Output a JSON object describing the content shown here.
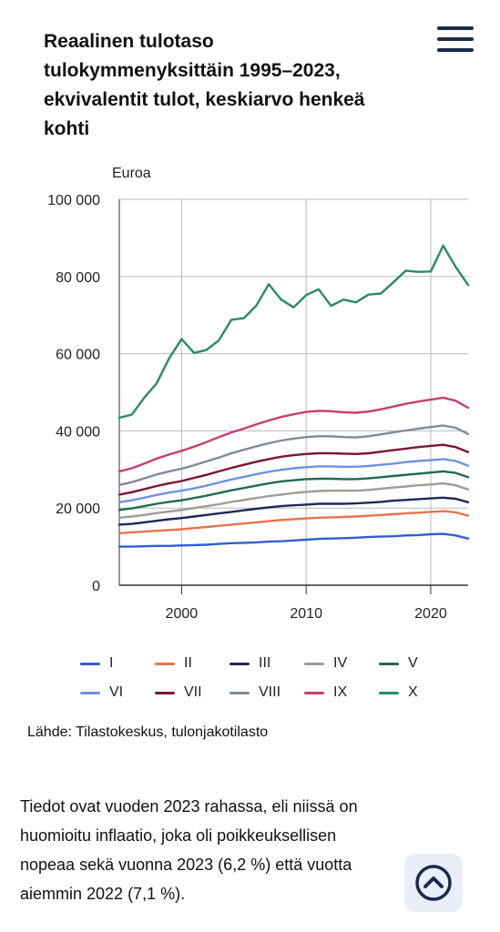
{
  "title_lines": [
    "Reaalinen tulotaso",
    "tulokymmenyksittäin 1995–2023,",
    "ekvivalentit tulot, keskiarvo henkeä",
    "kohti"
  ],
  "source": "Lähde: Tilastokeskus, tulonjakotilasto",
  "body_lines": [
    "Tiedot ovat vuoden 2023 rahassa, eli niissä on",
    "huomioitu inflaatio, joka oli poikkeuksellisen",
    "nopeaa sekä vuonna 2023 (6,2 %) että vuotta",
    "aiemmin 2022 (7,1 %)."
  ],
  "icons": {
    "menu": "hamburger-menu-icon",
    "scroll_top": "chevron-up-icon"
  },
  "chart_data": {
    "type": "line",
    "ylabel": "Euroa",
    "xlim": [
      1995,
      2023
    ],
    "ylim": [
      0,
      100000
    ],
    "x_ticks": [
      2000,
      2010,
      2020
    ],
    "y_ticks": [
      0,
      20000,
      40000,
      60000,
      80000,
      100000
    ],
    "x_tick_labels": [
      "2000",
      "2010",
      "2020"
    ],
    "y_tick_labels": [
      "0",
      "20 000",
      "40 000",
      "60 000",
      "80 000",
      "100 000"
    ],
    "grid": true,
    "legend_position": "bottom",
    "x": [
      1995,
      1996,
      1997,
      1998,
      1999,
      2000,
      2001,
      2002,
      2003,
      2004,
      2005,
      2006,
      2007,
      2008,
      2009,
      2010,
      2011,
      2012,
      2013,
      2014,
      2015,
      2016,
      2017,
      2018,
      2019,
      2020,
      2021,
      2022,
      2023
    ],
    "series": [
      {
        "name": "I",
        "color": "#2f5fd0",
        "values": [
          10000,
          10000,
          10100,
          10200,
          10200,
          10300,
          10400,
          10500,
          10700,
          10900,
          11000,
          11100,
          11300,
          11400,
          11600,
          11800,
          12000,
          12100,
          12200,
          12300,
          12500,
          12600,
          12700,
          12900,
          13000,
          13200,
          13300,
          12900,
          12100
        ]
      },
      {
        "name": "II",
        "color": "#e8724a",
        "values": [
          13500,
          13700,
          13900,
          14100,
          14300,
          14500,
          14800,
          15100,
          15400,
          15700,
          16000,
          16300,
          16600,
          16900,
          17100,
          17300,
          17500,
          17600,
          17700,
          17800,
          18000,
          18200,
          18400,
          18600,
          18800,
          19000,
          19200,
          18900,
          18000
        ]
      },
      {
        "name": "III",
        "color": "#1a2a55",
        "values": [
          15700,
          15900,
          16300,
          16700,
          17100,
          17400,
          17800,
          18200,
          18600,
          19000,
          19400,
          19800,
          20200,
          20500,
          20700,
          20900,
          21100,
          21100,
          21100,
          21200,
          21400,
          21600,
          21900,
          22100,
          22300,
          22500,
          22700,
          22400,
          21500
        ]
      },
      {
        "name": "IV",
        "color": "#a39a92",
        "values": [
          17500,
          17800,
          18200,
          18700,
          19100,
          19500,
          20000,
          20500,
          21000,
          21600,
          22100,
          22600,
          23100,
          23500,
          23900,
          24200,
          24400,
          24500,
          24500,
          24500,
          24700,
          25000,
          25300,
          25600,
          25900,
          26100,
          26400,
          25900,
          24800
        ]
      },
      {
        "name": "V",
        "color": "#1f6b4d",
        "values": [
          19500,
          19900,
          20500,
          21100,
          21600,
          22000,
          22600,
          23200,
          23900,
          24600,
          25200,
          25800,
          26400,
          26900,
          27200,
          27500,
          27600,
          27600,
          27500,
          27500,
          27700,
          28000,
          28300,
          28600,
          28900,
          29200,
          29500,
          29100,
          28000
        ]
      },
      {
        "name": "VI",
        "color": "#6e92e0",
        "values": [
          21500,
          22000,
          22700,
          23400,
          24000,
          24500,
          25100,
          25800,
          26600,
          27400,
          28100,
          28800,
          29400,
          29900,
          30300,
          30600,
          30800,
          30800,
          30700,
          30700,
          30900,
          31200,
          31500,
          31900,
          32200,
          32400,
          32700,
          32200,
          31000
        ]
      },
      {
        "name": "VII",
        "color": "#7a1535",
        "values": [
          23500,
          24100,
          24900,
          25700,
          26400,
          27000,
          27800,
          28600,
          29500,
          30400,
          31200,
          32000,
          32700,
          33300,
          33700,
          34000,
          34200,
          34200,
          34100,
          34000,
          34200,
          34600,
          35000,
          35400,
          35800,
          36100,
          36400,
          35800,
          34500
        ]
      },
      {
        "name": "VIII",
        "color": "#7f8a9e",
        "values": [
          26000,
          26700,
          27700,
          28700,
          29500,
          30200,
          31100,
          32100,
          33100,
          34200,
          35100,
          36000,
          36800,
          37500,
          38000,
          38400,
          38600,
          38600,
          38400,
          38300,
          38600,
          39100,
          39600,
          40100,
          40600,
          41000,
          41400,
          40800,
          39200
        ]
      },
      {
        "name": "IX",
        "color": "#c83d6e",
        "values": [
          29500,
          30300,
          31500,
          32800,
          33900,
          34800,
          35900,
          37100,
          38400,
          39600,
          40600,
          41700,
          42700,
          43600,
          44300,
          44900,
          45200,
          45100,
          44800,
          44700,
          45000,
          45600,
          46300,
          47000,
          47600,
          48100,
          48600,
          47800,
          46000
        ]
      },
      {
        "name": "X",
        "color": "#2a8a64",
        "values": [
          43400,
          44200,
          48600,
          52300,
          58800,
          63800,
          60200,
          61000,
          63500,
          68800,
          69200,
          72500,
          78000,
          74000,
          72000,
          75200,
          76700,
          72400,
          74000,
          73300,
          75300,
          75600,
          78500,
          81500,
          81200,
          81300,
          88000,
          82500,
          77800
        ]
      }
    ]
  }
}
